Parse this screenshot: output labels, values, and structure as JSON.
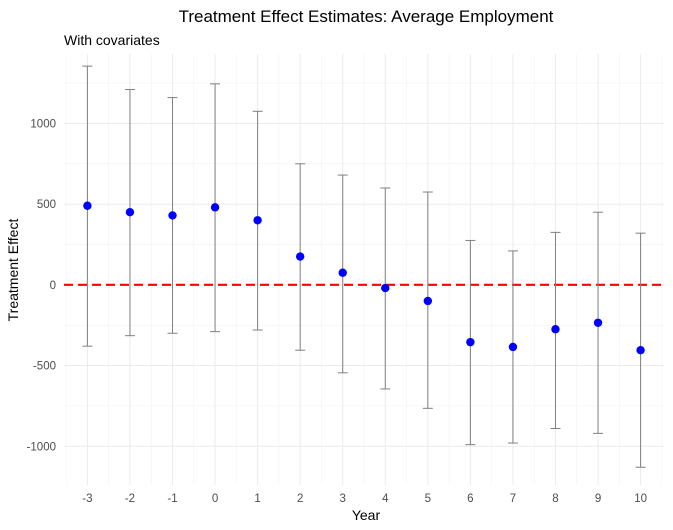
{
  "chart_data": {
    "type": "scatter",
    "title": "Treatment Effect Estimates: Average Employment",
    "subtitle": "With covariates",
    "xlabel": "Year",
    "ylabel": "Treatment Effect",
    "x": [
      -3,
      -2,
      -1,
      0,
      1,
      2,
      3,
      4,
      5,
      6,
      7,
      8,
      9,
      10
    ],
    "x_tick_labels": [
      "-3",
      "-2",
      "-1",
      "0",
      "1",
      "2",
      "3",
      "4",
      "5",
      "6",
      "7",
      "8",
      "9",
      "10"
    ],
    "y_ticks": [
      -1000,
      -500,
      0,
      500,
      1000
    ],
    "y_tick_labels": [
      "-1000",
      "-500",
      "0",
      "500",
      "1000"
    ],
    "xlim": [
      -3.55,
      10.55
    ],
    "ylim": [
      -1240,
      1430
    ],
    "series": [
      {
        "values": [
          490,
          450,
          430,
          480,
          400,
          175,
          75,
          -20,
          -100,
          -355,
          -385,
          -275,
          -235,
          -405
        ],
        "lower": [
          -380,
          -315,
          -300,
          -290,
          -280,
          -405,
          -545,
          -645,
          -765,
          -990,
          -980,
          -890,
          -920,
          -1130
        ],
        "upper": [
          1355,
          1210,
          1160,
          1245,
          1075,
          750,
          680,
          600,
          575,
          275,
          210,
          325,
          450,
          320
        ],
        "point_color": "#0000ff",
        "errorbar_color": "#808080"
      }
    ],
    "reference_line": {
      "y": 0,
      "style": "dashed",
      "color": "#ff0000"
    },
    "grid": true
  }
}
